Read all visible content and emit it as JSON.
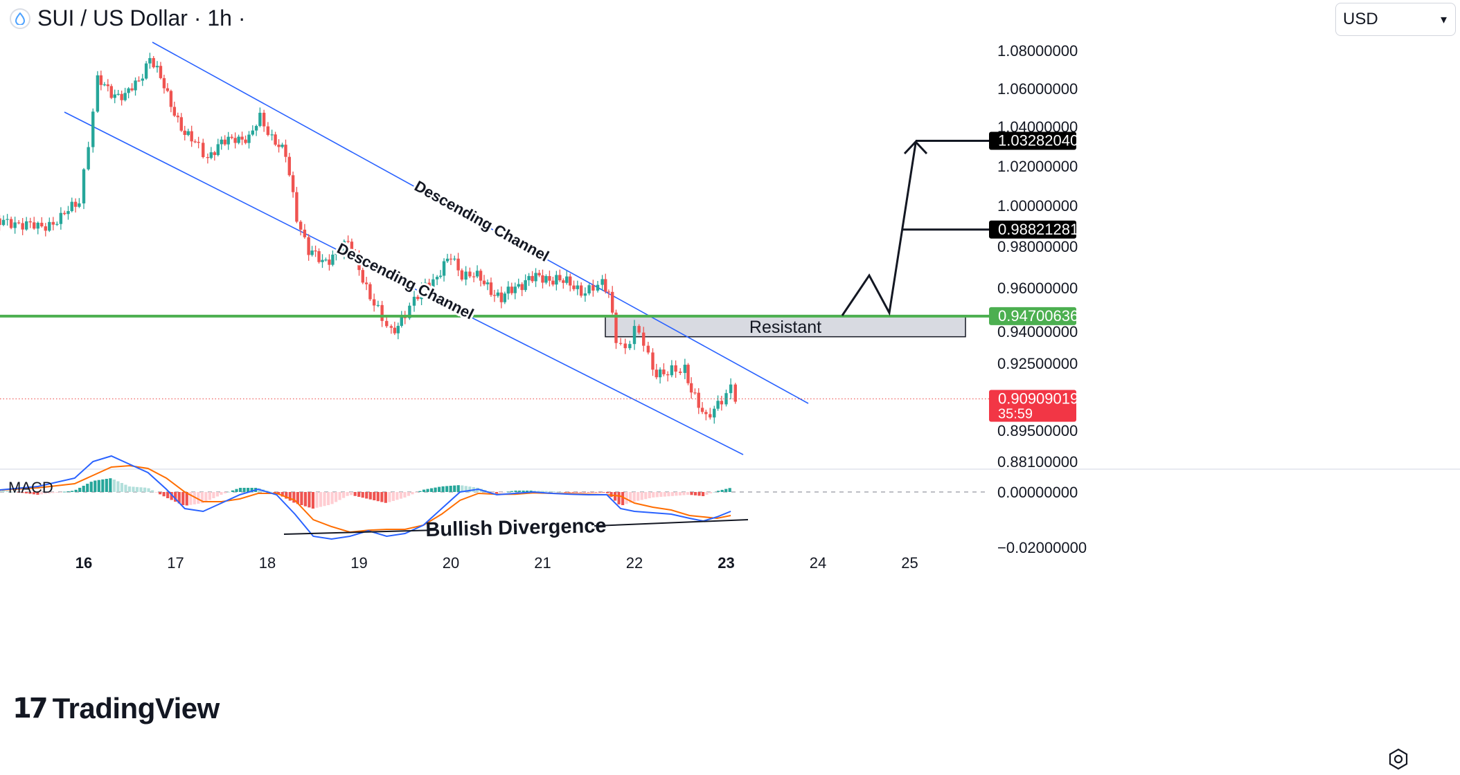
{
  "header": {
    "title": "SUI / US Dollar · 1h ·",
    "currency": "USD"
  },
  "brand": {
    "name": "TradingView"
  },
  "colors": {
    "up": "#26a69a",
    "down": "#ef5350",
    "channel": "#2962ff",
    "support": "#4caf50",
    "macd_line": "#2962ff",
    "signal_line": "#ff6d00"
  },
  "chart_data": {
    "type": "candlestick",
    "symbol": "SUI / US Dollar",
    "interval": "1h",
    "x_ticks": [
      "16",
      "17",
      "18",
      "19",
      "20",
      "21",
      "22",
      "23",
      "24",
      "25"
    ],
    "y_ticks": [
      "1.08000000",
      "1.06000000",
      "1.04000000",
      "1.02000000",
      "1.00000000",
      "0.98000000",
      "0.96000000",
      "0.94000000",
      "0.92500000",
      "0.89500000",
      "0.88100000"
    ],
    "price_tags": [
      {
        "label": "1.03282040",
        "value": 1.0328204,
        "style": "black"
      },
      {
        "label": "0.98821281",
        "value": 0.98821281,
        "style": "black"
      },
      {
        "label": "0.94700636",
        "value": 0.94700636,
        "style": "green"
      },
      {
        "label": "0.90909019",
        "value": 0.90909019,
        "style": "red",
        "countdown": "35:59"
      }
    ],
    "close_series": [
      [
        15.0,
        0.9908
      ],
      [
        15.25,
        0.992
      ],
      [
        15.5,
        0.989
      ],
      [
        15.75,
        0.9935
      ],
      [
        15.95,
        1.003
      ],
      [
        16.05,
        1.032
      ],
      [
        16.15,
        1.064
      ],
      [
        16.3,
        1.058
      ],
      [
        16.45,
        1.056
      ],
      [
        16.6,
        1.064
      ],
      [
        16.72,
        1.077
      ],
      [
        16.8,
        1.069
      ],
      [
        16.95,
        1.052
      ],
      [
        17.1,
        1.036
      ],
      [
        17.25,
        1.03
      ],
      [
        17.35,
        1.025
      ],
      [
        17.5,
        1.031
      ],
      [
        17.65,
        1.035
      ],
      [
        17.8,
        1.033
      ],
      [
        17.92,
        1.045
      ],
      [
        18.05,
        1.035
      ],
      [
        18.2,
        1.025
      ],
      [
        18.32,
        0.995
      ],
      [
        18.45,
        0.978
      ],
      [
        18.6,
        0.972
      ],
      [
        18.75,
        0.977
      ],
      [
        18.88,
        0.981
      ],
      [
        19.0,
        0.97
      ],
      [
        19.12,
        0.956
      ],
      [
        19.25,
        0.945
      ],
      [
        19.35,
        0.94
      ],
      [
        19.5,
        0.948
      ],
      [
        19.6,
        0.953
      ],
      [
        19.72,
        0.962
      ],
      [
        19.85,
        0.965
      ],
      [
        20.0,
        0.975
      ],
      [
        20.12,
        0.967
      ],
      [
        20.25,
        0.966
      ],
      [
        20.4,
        0.961
      ],
      [
        20.55,
        0.955
      ],
      [
        20.7,
        0.96
      ],
      [
        20.85,
        0.965
      ],
      [
        21.0,
        0.964
      ],
      [
        21.15,
        0.965
      ],
      [
        21.3,
        0.961
      ],
      [
        21.42,
        0.959
      ],
      [
        21.55,
        0.96
      ],
      [
        21.65,
        0.961
      ],
      [
        21.72,
        0.958
      ],
      [
        21.8,
        0.938
      ],
      [
        21.9,
        0.931
      ],
      [
        22.0,
        0.94
      ],
      [
        22.1,
        0.935
      ],
      [
        22.2,
        0.923
      ],
      [
        22.32,
        0.92
      ],
      [
        22.45,
        0.921
      ],
      [
        22.55,
        0.923
      ],
      [
        22.62,
        0.914
      ],
      [
        22.7,
        0.906
      ],
      [
        22.78,
        0.899
      ],
      [
        22.87,
        0.905
      ],
      [
        22.95,
        0.91
      ],
      [
        23.05,
        0.914
      ],
      [
        23.1,
        0.9091
      ]
    ],
    "annotations": [
      {
        "text": "Descending Channel",
        "kind": "upper-channel-label"
      },
      {
        "text": "Descending Channel",
        "kind": "lower-channel-label"
      },
      {
        "text": "Resistant",
        "kind": "zone",
        "low": 0.9375,
        "high": 0.947
      },
      {
        "text": "Bullish Divergence",
        "kind": "macd-label"
      }
    ],
    "macd": {
      "label": "MACD",
      "y_ticks": [
        "0.00000000",
        "−0.02000000"
      ],
      "histogram": [
        [
          15.0,
          0.001
        ],
        [
          15.5,
          -0.001
        ],
        [
          15.9,
          0.0005
        ],
        [
          16.1,
          0.004
        ],
        [
          16.3,
          0.005
        ],
        [
          16.5,
          0.002
        ],
        [
          16.7,
          0.0015
        ],
        [
          16.9,
          -0.002
        ],
        [
          17.1,
          -0.005
        ],
        [
          17.3,
          -0.004
        ],
        [
          17.5,
          -0.001
        ],
        [
          17.7,
          0.0015
        ],
        [
          17.9,
          0.0015
        ],
        [
          18.1,
          -0.0005
        ],
        [
          18.3,
          -0.004
        ],
        [
          18.5,
          -0.006
        ],
        [
          18.7,
          -0.0045
        ],
        [
          18.9,
          -0.001
        ],
        [
          19.1,
          -0.0025
        ],
        [
          19.3,
          -0.004
        ],
        [
          19.5,
          -0.002
        ],
        [
          19.7,
          0.0008
        ],
        [
          19.9,
          0.002
        ],
        [
          20.1,
          0.0025
        ],
        [
          20.3,
          0.0015
        ],
        [
          20.5,
          -0.0005
        ],
        [
          20.7,
          0.0005
        ],
        [
          20.9,
          0.0005
        ],
        [
          21.1,
          0.0003
        ],
        [
          21.3,
          -0.0002
        ],
        [
          21.5,
          -0.0002
        ],
        [
          21.7,
          -0.0002
        ],
        [
          21.85,
          -0.005
        ],
        [
          22.0,
          -0.0035
        ],
        [
          22.2,
          -0.002
        ],
        [
          22.4,
          -0.0015
        ],
        [
          22.6,
          -0.001
        ],
        [
          22.75,
          -0.0015
        ],
        [
          22.9,
          0.0003
        ],
        [
          23.05,
          0.0015
        ]
      ],
      "macd_line": [
        [
          15.0,
          0.0005
        ],
        [
          15.5,
          0.002
        ],
        [
          15.9,
          0.005
        ],
        [
          16.1,
          0.011
        ],
        [
          16.3,
          0.013
        ],
        [
          16.5,
          0.01
        ],
        [
          16.7,
          0.007
        ],
        [
          16.9,
          0.001
        ],
        [
          17.1,
          -0.006
        ],
        [
          17.3,
          -0.007
        ],
        [
          17.5,
          -0.004
        ],
        [
          17.7,
          -0.001
        ],
        [
          17.9,
          0.001
        ],
        [
          18.1,
          -0.001
        ],
        [
          18.3,
          -0.008
        ],
        [
          18.5,
          -0.016
        ],
        [
          18.7,
          -0.017
        ],
        [
          18.9,
          -0.016
        ],
        [
          19.1,
          -0.014
        ],
        [
          19.3,
          -0.016
        ],
        [
          19.5,
          -0.015
        ],
        [
          19.7,
          -0.012
        ],
        [
          19.9,
          -0.006
        ],
        [
          20.1,
          0.0
        ],
        [
          20.3,
          0.001
        ],
        [
          20.5,
          -0.001
        ],
        [
          20.7,
          -0.0005
        ],
        [
          20.9,
          0.0
        ],
        [
          21.1,
          -0.0005
        ],
        [
          21.3,
          -0.0008
        ],
        [
          21.5,
          -0.001
        ],
        [
          21.7,
          -0.001
        ],
        [
          21.85,
          -0.006
        ],
        [
          22.0,
          -0.007
        ],
        [
          22.2,
          -0.0075
        ],
        [
          22.4,
          -0.008
        ],
        [
          22.6,
          -0.0095
        ],
        [
          22.75,
          -0.0105
        ],
        [
          22.9,
          -0.009
        ],
        [
          23.05,
          -0.007
        ]
      ],
      "signal_line": [
        [
          15.0,
          0.0005
        ],
        [
          15.5,
          0.0015
        ],
        [
          15.9,
          0.003
        ],
        [
          16.1,
          0.006
        ],
        [
          16.3,
          0.009
        ],
        [
          16.5,
          0.0095
        ],
        [
          16.7,
          0.0085
        ],
        [
          16.9,
          0.005
        ],
        [
          17.1,
          0.0
        ],
        [
          17.3,
          -0.0035
        ],
        [
          17.5,
          -0.0035
        ],
        [
          17.7,
          -0.0025
        ],
        [
          17.9,
          -0.0005
        ],
        [
          18.1,
          -0.0005
        ],
        [
          18.3,
          -0.003
        ],
        [
          18.5,
          -0.01
        ],
        [
          18.7,
          -0.0125
        ],
        [
          18.9,
          -0.0145
        ],
        [
          19.1,
          -0.0138
        ],
        [
          19.3,
          -0.0135
        ],
        [
          19.5,
          -0.0135
        ],
        [
          19.7,
          -0.012
        ],
        [
          19.9,
          -0.008
        ],
        [
          20.1,
          -0.003
        ],
        [
          20.3,
          -0.0005
        ],
        [
          20.5,
          -0.0008
        ],
        [
          20.7,
          -0.0008
        ],
        [
          20.9,
          -0.0003
        ],
        [
          21.1,
          -0.0005
        ],
        [
          21.3,
          -0.0006
        ],
        [
          21.5,
          -0.0008
        ],
        [
          21.7,
          -0.001
        ],
        [
          21.85,
          -0.0015
        ],
        [
          22.0,
          -0.004
        ],
        [
          22.2,
          -0.0055
        ],
        [
          22.4,
          -0.0065
        ],
        [
          22.6,
          -0.0085
        ],
        [
          22.75,
          -0.009
        ],
        [
          22.9,
          -0.0095
        ],
        [
          23.05,
          -0.0085
        ]
      ]
    }
  }
}
